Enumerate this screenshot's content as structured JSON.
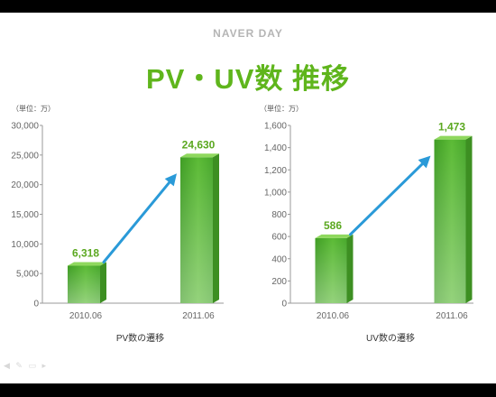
{
  "header": {
    "brand": "NAVER DAY",
    "title": "PV・UV数 推移"
  },
  "chart_data": [
    {
      "type": "bar",
      "unit_label": "（単位：万）",
      "caption": "PV数の遷移",
      "categories": [
        "2010.06",
        "2011.06"
      ],
      "values": [
        6318,
        24630
      ],
      "value_labels": [
        "6,318",
        "24,630"
      ],
      "yticks": [
        "0",
        "5,000",
        "10,000",
        "15,000",
        "20,000",
        "25,000",
        "30,000"
      ],
      "ylim": [
        0,
        30000
      ],
      "bar_color": "#4fae2a",
      "arrow_color": "#2a9ad8"
    },
    {
      "type": "bar",
      "unit_label": "（単位：万）",
      "caption": "UV数の遷移",
      "categories": [
        "2010.06",
        "2011.06"
      ],
      "values": [
        586,
        1473
      ],
      "value_labels": [
        "586",
        "1,473"
      ],
      "yticks": [
        "0",
        "200",
        "400",
        "600",
        "800",
        "1,000",
        "1,200",
        "1,400",
        "1,600"
      ],
      "ylim": [
        0,
        1600
      ],
      "bar_color": "#4fae2a",
      "arrow_color": "#2a9ad8"
    }
  ]
}
